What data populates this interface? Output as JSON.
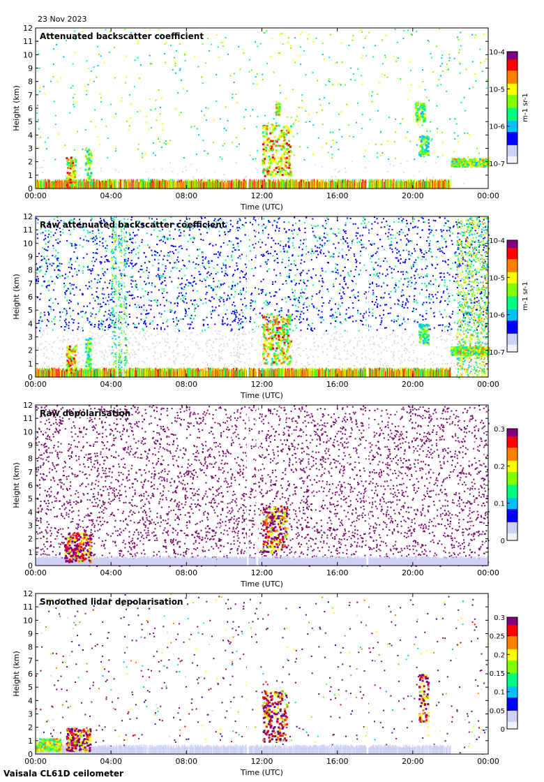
{
  "header": {
    "date": "23 Nov 2023"
  },
  "footer": {
    "instrument": "Vaisala CL61D ceilometer"
  },
  "palette": {
    "colormap": [
      "#f2f2ff",
      "#d0d0f4",
      "#0000ff",
      "#00c0ff",
      "#00ff80",
      "#80ff00",
      "#ffff00",
      "#ff8000",
      "#ff0000",
      "#800080"
    ],
    "background_noise": "#dcdcdc",
    "depol_noise": "#7a0a6a"
  },
  "chart_data": [
    {
      "type": "heatmap",
      "title": "Attenuated backscatter coefficient",
      "xlabel": "Time (UTC)",
      "ylabel": "Height (km)",
      "xlim": [
        0,
        24
      ],
      "ylim": [
        0,
        12
      ],
      "xticks": [
        "00:00",
        "04:00",
        "08:00",
        "12:00",
        "16:00",
        "20:00",
        "00:00"
      ],
      "yticks": [
        "0",
        "1",
        "2",
        "3",
        "4",
        "5",
        "6",
        "7",
        "8",
        "9",
        "10",
        "11",
        "12"
      ],
      "colorbar": {
        "scale": "log",
        "ticks": [
          "10-7",
          "10-6",
          "10-5",
          "10-4"
        ],
        "unit": "m-1 sr-1",
        "range": [
          1e-07,
          0.0001
        ]
      },
      "gaps_hours": [
        [
          4.3,
          4.35
        ],
        [
          4.6,
          4.65
        ],
        [
          11.2,
          11.3
        ],
        [
          17.55,
          17.65
        ]
      ],
      "features": [
        {
          "kind": "surface_layer",
          "start": 0,
          "end": 22,
          "top_km": 0.6,
          "level": 0.85
        },
        {
          "kind": "cloud",
          "start": 1.6,
          "end": 2.1,
          "bottom_km": 0.3,
          "top_km": 2.4,
          "level": 0.7
        },
        {
          "kind": "cloud",
          "start": 2.6,
          "end": 2.9,
          "bottom_km": 0.5,
          "top_km": 3.1,
          "level": 0.55
        },
        {
          "kind": "cloud",
          "start": 12.0,
          "end": 13.5,
          "bottom_km": 1.0,
          "top_km": 4.8,
          "level": 0.7
        },
        {
          "kind": "cloud",
          "start": 12.7,
          "end": 12.9,
          "bottom_km": 5.5,
          "top_km": 6.5,
          "level": 0.6
        },
        {
          "kind": "cloud",
          "start": 20.3,
          "end": 20.8,
          "bottom_km": 2.5,
          "top_km": 4.0,
          "level": 0.5
        },
        {
          "kind": "cloud",
          "start": 20.1,
          "end": 20.6,
          "bottom_km": 5.0,
          "top_km": 6.5,
          "level": 0.55
        },
        {
          "kind": "cloud",
          "start": 22.0,
          "end": 24.0,
          "bottom_km": 1.7,
          "top_km": 2.3,
          "level": 0.6
        }
      ]
    },
    {
      "type": "heatmap",
      "title": "Raw attenuated backscatter coefficient",
      "xlabel": "Time (UTC)",
      "ylabel": "Height (km)",
      "xlim": [
        0,
        24
      ],
      "ylim": [
        0,
        12
      ],
      "xticks": [
        "00:00",
        "04:00",
        "08:00",
        "12:00",
        "16:00",
        "20:00",
        "00:00"
      ],
      "yticks": [
        "0",
        "1",
        "2",
        "3",
        "4",
        "5",
        "6",
        "7",
        "8",
        "9",
        "10",
        "11",
        "12"
      ],
      "colorbar": {
        "scale": "log",
        "ticks": [
          "10-7",
          "10-6",
          "10-5",
          "10-4"
        ],
        "unit": "m-1 sr-1",
        "range": [
          1e-07,
          0.0001
        ]
      },
      "gaps_hours": [
        [
          4.3,
          4.35
        ],
        [
          4.6,
          4.65
        ],
        [
          11.2,
          11.3
        ],
        [
          11.7,
          11.8
        ],
        [
          17.55,
          17.65
        ]
      ],
      "features": [
        {
          "kind": "surface_layer",
          "start": 0,
          "end": 22,
          "top_km": 0.6,
          "level": 0.85
        },
        {
          "kind": "cloud",
          "start": 1.6,
          "end": 2.1,
          "bottom_km": 0.3,
          "top_km": 2.4,
          "level": 0.7
        },
        {
          "kind": "cloud",
          "start": 2.6,
          "end": 2.9,
          "bottom_km": 0.5,
          "top_km": 3.1,
          "level": 0.55
        },
        {
          "kind": "cloud",
          "start": 12.0,
          "end": 13.5,
          "bottom_km": 1.0,
          "top_km": 4.8,
          "level": 0.7
        },
        {
          "kind": "cloud",
          "start": 20.3,
          "end": 20.8,
          "bottom_km": 2.5,
          "top_km": 4.0,
          "level": 0.5
        },
        {
          "kind": "cloud",
          "start": 22.0,
          "end": 24.0,
          "bottom_km": 1.7,
          "top_km": 2.3,
          "level": 0.6
        },
        {
          "kind": "noise_column",
          "start": 4.0,
          "end": 4.8,
          "level": 0.45
        },
        {
          "kind": "noise_column",
          "start": 22.3,
          "end": 24.0,
          "level": 0.55
        }
      ]
    },
    {
      "type": "heatmap",
      "title": "Raw depolarisation",
      "xlabel": "Time (UTC)",
      "ylabel": "Height (km)",
      "xlim": [
        0,
        24
      ],
      "ylim": [
        0,
        12
      ],
      "xticks": [
        "00:00",
        "04:00",
        "08:00",
        "12:00",
        "16:00",
        "20:00",
        "00:00"
      ],
      "yticks": [
        "0",
        "1",
        "2",
        "3",
        "4",
        "5",
        "6",
        "7",
        "8",
        "9",
        "10",
        "11",
        "12"
      ],
      "colorbar": {
        "scale": "linear",
        "ticks": [
          "0",
          "0.1",
          "0.2",
          "0.3"
        ],
        "unit": "",
        "range": [
          0,
          0.3
        ]
      },
      "gaps_hours": [
        [
          11.2,
          11.3
        ],
        [
          11.7,
          11.8
        ],
        [
          17.55,
          17.65
        ]
      ],
      "features": [
        {
          "kind": "surface_layer",
          "start": 0,
          "end": 24,
          "top_km": 0.6,
          "level": 0.15
        },
        {
          "kind": "cloud",
          "start": 1.5,
          "end": 2.9,
          "bottom_km": 0.3,
          "top_km": 2.5,
          "level": 0.95
        },
        {
          "kind": "cloud",
          "start": 12.0,
          "end": 13.3,
          "bottom_km": 1.0,
          "top_km": 4.5,
          "level": 0.95
        }
      ]
    },
    {
      "type": "heatmap",
      "title": "Smoothed lidar depolarisation",
      "xlabel": "Time (UTC)",
      "ylabel": "Height (km)",
      "xlim": [
        0,
        24
      ],
      "ylim": [
        0,
        12
      ],
      "xticks": [
        "00:00",
        "04:00",
        "08:00",
        "12:00",
        "16:00",
        "20:00",
        "00:00"
      ],
      "yticks": [
        "0",
        "1",
        "2",
        "3",
        "4",
        "5",
        "6",
        "7",
        "8",
        "9",
        "10",
        "11",
        "12"
      ],
      "colorbar": {
        "scale": "linear",
        "ticks": [
          "0",
          "0.05",
          "0.1",
          "0.15",
          "0.2",
          "0.25",
          "0.3"
        ],
        "unit": "",
        "range": [
          0,
          0.3
        ]
      },
      "gaps_hours": [
        [
          11.2,
          11.3
        ],
        [
          17.55,
          17.65
        ]
      ],
      "features": [
        {
          "kind": "surface_layer",
          "start": 0,
          "end": 22,
          "top_km": 0.6,
          "level": 0.1
        },
        {
          "kind": "cloud",
          "start": 0.0,
          "end": 1.3,
          "bottom_km": 0.3,
          "top_km": 1.2,
          "level": 0.6
        },
        {
          "kind": "cloud",
          "start": 1.6,
          "end": 2.9,
          "bottom_km": 0.3,
          "top_km": 2.0,
          "level": 0.95
        },
        {
          "kind": "cloud",
          "start": 12.0,
          "end": 13.3,
          "bottom_km": 1.0,
          "top_km": 4.8,
          "level": 0.95
        },
        {
          "kind": "cloud",
          "start": 20.3,
          "end": 20.8,
          "bottom_km": 2.5,
          "top_km": 6.0,
          "level": 0.95
        }
      ]
    }
  ]
}
